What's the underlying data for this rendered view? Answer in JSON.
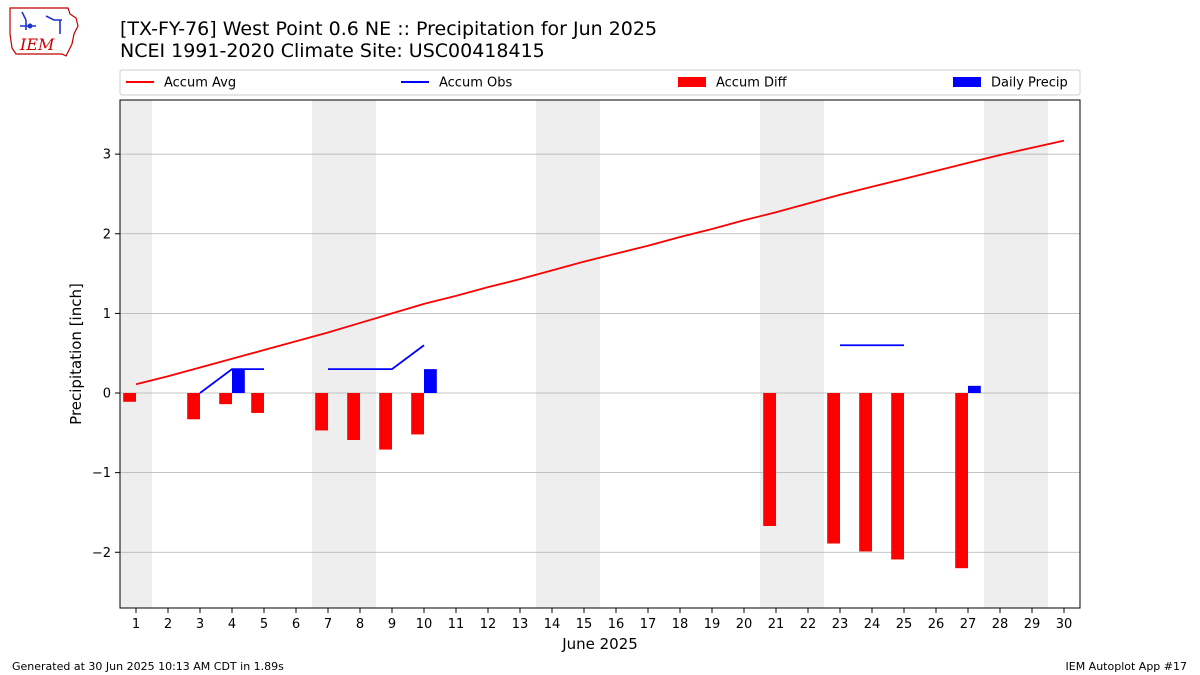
{
  "header": {
    "title_line1": "[TX-FY-76] West Point 0.6 NE :: Precipitation for Jun 2025",
    "title_line2": "NCEI 1991-2020 Climate Site: USC00418415"
  },
  "logo": {
    "text": "IEM",
    "icon": "iem-iowa-logo"
  },
  "footer": {
    "left": "Generated at 30 Jun 2025 10:13 AM CDT in 1.89s",
    "right": "IEM Autoplot App #17"
  },
  "chart_data": {
    "type": "bar",
    "title": "[TX-FY-76] West Point 0.6 NE :: Precipitation for Jun 2025",
    "subtitle": "NCEI 1991-2020 Climate Site: USC00418415",
    "xlabel": "June 2025",
    "ylabel": "Precipitation [inch]",
    "x": [
      1,
      2,
      3,
      4,
      5,
      6,
      7,
      8,
      9,
      10,
      11,
      12,
      13,
      14,
      15,
      16,
      17,
      18,
      19,
      20,
      21,
      22,
      23,
      24,
      25,
      26,
      27,
      28,
      29,
      30
    ],
    "xlim": [
      0.5,
      30.5
    ],
    "ylim": [
      -2.7,
      3.68
    ],
    "yticks": [
      -2,
      -1,
      0,
      1,
      2,
      3
    ],
    "ytick_labels": [
      "−2",
      "−1",
      "0",
      "1",
      "2",
      "3"
    ],
    "grid": "horizontal",
    "legend_placement": "top",
    "weekend_shading": [
      [
        0.5,
        1.5
      ],
      [
        6.5,
        8.5
      ],
      [
        13.5,
        15.5
      ],
      [
        20.5,
        22.5
      ],
      [
        27.5,
        29.5
      ]
    ],
    "colors": {
      "avg": "#ff0000",
      "obs": "#0000ff",
      "diff": "#ff0000",
      "daily": "#0000ff",
      "weekend": "#eeeeee",
      "grid": "#b0b0b0"
    },
    "series": [
      {
        "name": "Accum Avg",
        "kind": "line",
        "x": [
          1,
          2,
          3,
          4,
          5,
          6,
          7,
          8,
          9,
          10,
          11,
          12,
          13,
          14,
          15,
          16,
          17,
          18,
          19,
          20,
          21,
          22,
          23,
          24,
          25,
          26,
          27,
          28,
          29,
          30
        ],
        "values": [
          0.11,
          0.21,
          0.32,
          0.43,
          0.54,
          0.65,
          0.76,
          0.88,
          1.0,
          1.12,
          1.22,
          1.33,
          1.43,
          1.54,
          1.65,
          1.75,
          1.85,
          1.96,
          2.06,
          2.17,
          2.27,
          2.38,
          2.49,
          2.59,
          2.69,
          2.79,
          2.89,
          2.99,
          3.08,
          3.17
        ]
      },
      {
        "name": "Accum Obs",
        "kind": "line",
        "segments": [
          {
            "x": [
              3,
              4,
              5
            ],
            "values": [
              0.0,
              0.3,
              0.3
            ]
          },
          {
            "x": [
              7,
              8,
              9,
              10
            ],
            "values": [
              0.3,
              0.3,
              0.3,
              0.6
            ]
          },
          {
            "x": [
              23,
              24,
              25
            ],
            "values": [
              0.6,
              0.6,
              0.6
            ]
          }
        ]
      },
      {
        "name": "Accum Diff",
        "kind": "bar",
        "x": [
          1,
          3,
          4,
          5,
          7,
          8,
          9,
          10,
          21,
          23,
          24,
          25,
          27
        ],
        "values": [
          -0.11,
          -0.33,
          -0.14,
          -0.25,
          -0.47,
          -0.59,
          -0.71,
          -0.52,
          -1.67,
          -1.89,
          -1.99,
          -2.09,
          -2.2
        ]
      },
      {
        "name": "Daily Precip",
        "kind": "bar",
        "x": [
          4,
          10,
          27
        ],
        "values": [
          0.3,
          0.3,
          0.09
        ]
      }
    ]
  }
}
